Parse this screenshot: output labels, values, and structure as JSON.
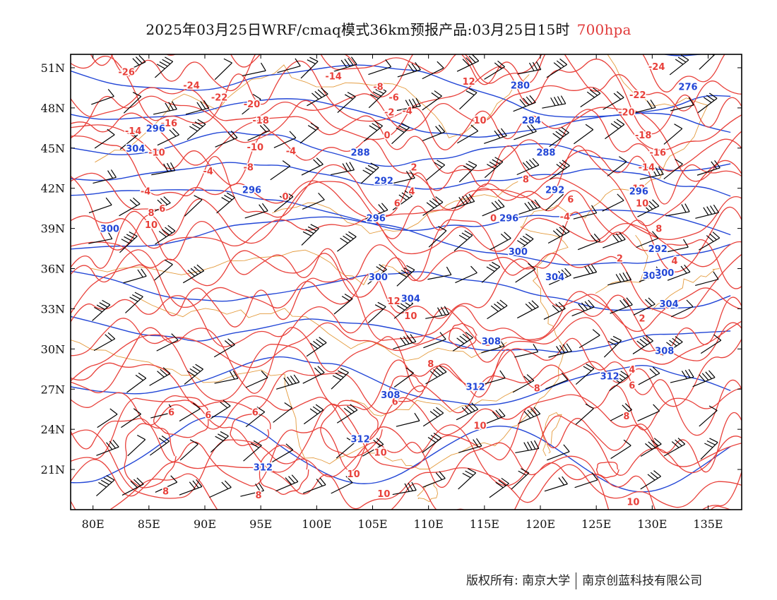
{
  "title": {
    "main": "2025年03月25日WRF/cmaq模式36km预报产品:03月25日15时",
    "level": "700hpa"
  },
  "map": {
    "lon_range": [
      78,
      138
    ],
    "lat_range": [
      18,
      52
    ],
    "lon_ticks": [
      "80E",
      "85E",
      "90E",
      "95E",
      "100E",
      "105E",
      "110E",
      "115E",
      "120E",
      "125E",
      "130E",
      "135E"
    ],
    "lat_ticks": [
      "51N",
      "48N",
      "45N",
      "42N",
      "39N",
      "36N",
      "33N",
      "30N",
      "27N",
      "24N",
      "21N"
    ],
    "colors": {
      "temperature": "#e8403a",
      "temperature_label": "#e8403a",
      "geopotential": "#2246d6",
      "geopotential_label": "#2246d6",
      "borders": "#e39a3c",
      "wind_barbs": "#000000"
    },
    "temperature_labels": [
      {
        "text": "-26",
        "lon": 83.0,
        "lat": 50.7
      },
      {
        "text": "-24",
        "lon": 88.8,
        "lat": 49.7
      },
      {
        "text": "-22",
        "lon": 91.3,
        "lat": 48.8
      },
      {
        "text": "-20",
        "lon": 94.2,
        "lat": 48.3
      },
      {
        "text": "-18",
        "lon": 95.0,
        "lat": 47.1
      },
      {
        "text": "-16",
        "lon": 86.8,
        "lat": 46.9
      },
      {
        "text": "-14",
        "lon": 83.6,
        "lat": 46.3
      },
      {
        "text": "-14",
        "lon": 101.5,
        "lat": 50.4
      },
      {
        "text": "-10",
        "lon": 94.5,
        "lat": 45.1
      },
      {
        "text": "-10",
        "lon": 85.7,
        "lat": 44.7
      },
      {
        "text": "-8",
        "lon": 105.5,
        "lat": 49.6
      },
      {
        "text": "-6",
        "lon": 106.9,
        "lat": 48.8
      },
      {
        "text": "-4",
        "lon": 108.1,
        "lat": 47.8
      },
      {
        "text": "-2",
        "lon": 106.5,
        "lat": 47.7
      },
      {
        "text": "0",
        "lon": 106.3,
        "lat": 46.0
      },
      {
        "text": "-4",
        "lon": 97.7,
        "lat": 44.8
      },
      {
        "text": "-4",
        "lon": 90.3,
        "lat": 43.3
      },
      {
        "text": "-8",
        "lon": 93.9,
        "lat": 43.6
      },
      {
        "text": "-4",
        "lon": 84.7,
        "lat": 41.8
      },
      {
        "text": "0",
        "lon": 97.2,
        "lat": 41.4
      },
      {
        "text": "2",
        "lon": 108.7,
        "lat": 43.6
      },
      {
        "text": "4",
        "lon": 108.5,
        "lat": 41.8
      },
      {
        "text": "6",
        "lon": 107.2,
        "lat": 40.9
      },
      {
        "text": "8",
        "lon": 85.2,
        "lat": 40.2
      },
      {
        "text": "6",
        "lon": 86.2,
        "lat": 40.5
      },
      {
        "text": "10",
        "lon": 85.2,
        "lat": 39.3
      },
      {
        "text": "12",
        "lon": 113.6,
        "lat": 50.0
      },
      {
        "text": "10",
        "lon": 114.6,
        "lat": 47.1
      },
      {
        "text": "8",
        "lon": 118.7,
        "lat": 42.7
      },
      {
        "text": "6",
        "lon": 122.7,
        "lat": 41.2
      },
      {
        "text": "-4",
        "lon": 122.2,
        "lat": 39.9
      },
      {
        "text": "0",
        "lon": 115.8,
        "lat": 39.8
      },
      {
        "text": "-24",
        "lon": 130.4,
        "lat": 51.1
      },
      {
        "text": "-22",
        "lon": 128.7,
        "lat": 49.0
      },
      {
        "text": "-20",
        "lon": 127.7,
        "lat": 47.7
      },
      {
        "text": "-18",
        "lon": 129.2,
        "lat": 46.0
      },
      {
        "text": "-16",
        "lon": 130.5,
        "lat": 44.7
      },
      {
        "text": "-14",
        "lon": 129.5,
        "lat": 43.6
      },
      {
        "text": "12",
        "lon": 128.8,
        "lat": 42.0
      },
      {
        "text": "10",
        "lon": 129.1,
        "lat": 40.9
      },
      {
        "text": "8",
        "lon": 130.6,
        "lat": 39.0
      },
      {
        "text": "4",
        "lon": 132.0,
        "lat": 36.6
      },
      {
        "text": "2",
        "lon": 127.1,
        "lat": 36.8
      },
      {
        "text": "0",
        "lon": 131.4,
        "lat": 33.3
      },
      {
        "text": "2",
        "lon": 129.1,
        "lat": 32.3
      },
      {
        "text": "4",
        "lon": 128.2,
        "lat": 28.5
      },
      {
        "text": "6",
        "lon": 128.2,
        "lat": 27.3
      },
      {
        "text": "8",
        "lon": 127.7,
        "lat": 25.0
      },
      {
        "text": "10",
        "lon": 128.3,
        "lat": 18.6
      },
      {
        "text": "12",
        "lon": 106.9,
        "lat": 33.6
      },
      {
        "text": "10",
        "lon": 108.4,
        "lat": 32.5
      },
      {
        "text": "8",
        "lon": 110.2,
        "lat": 28.9
      },
      {
        "text": "8",
        "lon": 119.7,
        "lat": 27.1
      },
      {
        "text": "10",
        "lon": 114.6,
        "lat": 24.3
      },
      {
        "text": "10",
        "lon": 105.7,
        "lat": 22.3
      },
      {
        "text": "10",
        "lon": 103.3,
        "lat": 20.7
      },
      {
        "text": "10",
        "lon": 106.0,
        "lat": 19.2
      },
      {
        "text": "6",
        "lon": 107.0,
        "lat": 26.1
      },
      {
        "text": "6",
        "lon": 87.0,
        "lat": 25.3
      },
      {
        "text": "6",
        "lon": 90.3,
        "lat": 25.1
      },
      {
        "text": "6",
        "lon": 94.5,
        "lat": 25.3
      },
      {
        "text": "8",
        "lon": 86.5,
        "lat": 19.4
      },
      {
        "text": "8",
        "lon": 94.8,
        "lat": 19.1
      }
    ],
    "height_labels": [
      {
        "text": "280",
        "lon": 118.2,
        "lat": 49.7
      },
      {
        "text": "284",
        "lon": 119.2,
        "lat": 47.1
      },
      {
        "text": "276",
        "lon": 133.2,
        "lat": 49.6
      },
      {
        "text": "288",
        "lon": 103.9,
        "lat": 44.7
      },
      {
        "text": "288",
        "lon": 120.5,
        "lat": 44.7
      },
      {
        "text": "292",
        "lon": 106.0,
        "lat": 42.6
      },
      {
        "text": "292",
        "lon": 121.3,
        "lat": 41.9
      },
      {
        "text": "292",
        "lon": 130.5,
        "lat": 37.5
      },
      {
        "text": "296",
        "lon": 85.6,
        "lat": 46.5
      },
      {
        "text": "296",
        "lon": 94.2,
        "lat": 41.9
      },
      {
        "text": "296",
        "lon": 105.3,
        "lat": 39.8
      },
      {
        "text": "296",
        "lon": 117.2,
        "lat": 39.8
      },
      {
        "text": "296",
        "lon": 128.8,
        "lat": 41.8
      },
      {
        "text": "300",
        "lon": 81.5,
        "lat": 39.0
      },
      {
        "text": "300",
        "lon": 105.5,
        "lat": 35.4
      },
      {
        "text": "300",
        "lon": 118.0,
        "lat": 37.3
      },
      {
        "text": "300",
        "lon": 130.0,
        "lat": 35.5
      },
      {
        "text": "304",
        "lon": 108.4,
        "lat": 33.8
      },
      {
        "text": "304",
        "lon": 121.3,
        "lat": 35.4
      },
      {
        "text": "304",
        "lon": 131.5,
        "lat": 33.4
      },
      {
        "text": "304",
        "lon": 83.8,
        "lat": 45.0
      },
      {
        "text": "308",
        "lon": 115.6,
        "lat": 30.6
      },
      {
        "text": "308",
        "lon": 131.1,
        "lat": 29.9
      },
      {
        "text": "308",
        "lon": 106.6,
        "lat": 26.6
      },
      {
        "text": "312",
        "lon": 126.2,
        "lat": 28.0
      },
      {
        "text": "312",
        "lon": 114.2,
        "lat": 27.2
      },
      {
        "text": "312",
        "lon": 103.9,
        "lat": 23.3
      },
      {
        "text": "312",
        "lon": 95.2,
        "lat": 21.2
      },
      {
        "text": "300",
        "lon": 131.1,
        "lat": 35.7
      }
    ]
  },
  "footer": {
    "left": "版权所有: 南京大学",
    "right": "南京创蓝科技有限公司"
  }
}
